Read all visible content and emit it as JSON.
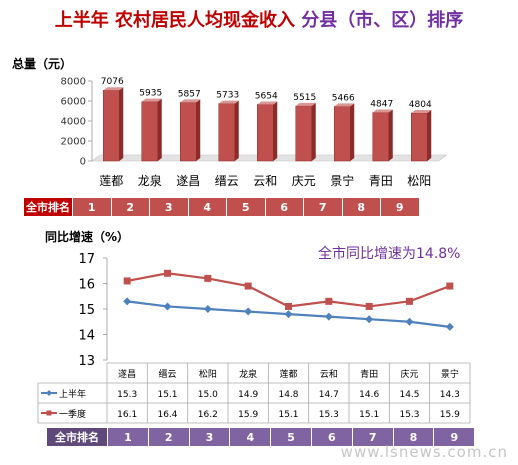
{
  "header": {
    "part1": "上半年",
    "part2": "农村居民人均现金收入",
    "part3": "分县（市、区）排序"
  },
  "chart_data": [
    {
      "type": "bar",
      "ylabel": "总量（元）",
      "ylim": [
        0,
        8000
      ],
      "yticks": [
        0,
        2000,
        4000,
        6000,
        8000
      ],
      "categories": [
        "莲都",
        "龙泉",
        "遂昌",
        "缙云",
        "云和",
        "庆元",
        "景宁",
        "青田",
        "松阳"
      ],
      "values": [
        7076,
        5935,
        5857,
        5733,
        5654,
        5515,
        5466,
        4847,
        4804
      ],
      "grid": false,
      "color": "#c0504d"
    },
    {
      "type": "line",
      "title": "全市同比增速为14.8%",
      "ylabel": "同比增速（%）",
      "ylim": [
        13,
        17
      ],
      "yticks": [
        13,
        14,
        15,
        16,
        17
      ],
      "categories": [
        "遂昌",
        "缙云",
        "松阳",
        "龙泉",
        "莲都",
        "云和",
        "青田",
        "庆元",
        "景宁"
      ],
      "series": [
        {
          "name": "上半年",
          "values": [
            15.3,
            15.1,
            15.0,
            14.9,
            14.8,
            14.7,
            14.6,
            14.5,
            14.3
          ],
          "color": "#4f81bd"
        },
        {
          "name": "一季度",
          "values": [
            16.1,
            16.4,
            16.2,
            15.9,
            15.1,
            15.3,
            15.1,
            15.3,
            15.9
          ],
          "color": "#c0504d"
        }
      ],
      "grid": false,
      "legend": "bottom-left table"
    }
  ],
  "rank_bar_top": {
    "label": "全市排名",
    "numbers": [
      "1",
      "2",
      "3",
      "4",
      "5",
      "6",
      "7",
      "8",
      "9"
    ]
  },
  "rank_bar_bottom": {
    "label": "全市排名",
    "numbers": [
      "1",
      "2",
      "3",
      "4",
      "5",
      "6",
      "7",
      "8",
      "9"
    ]
  },
  "watermark": "www.lsnews.com.cn"
}
